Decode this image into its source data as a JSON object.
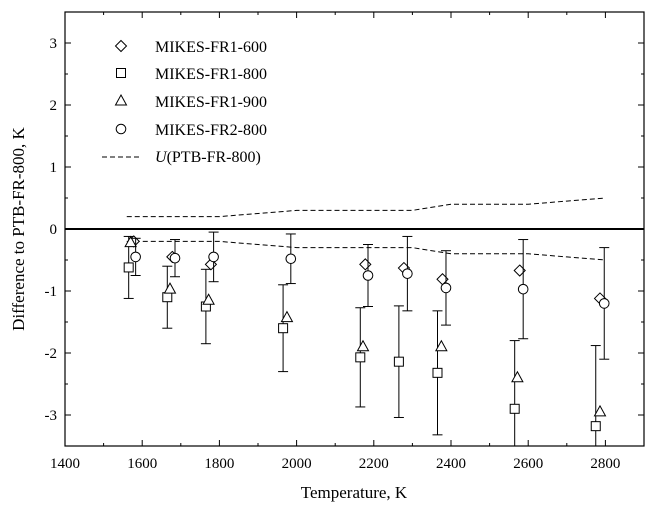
{
  "chart_data": {
    "type": "scatter",
    "title": "",
    "xlabel": "Temperature, K",
    "ylabel": "Difference to PTB-FR-800, K",
    "xlim": [
      1400,
      2900
    ],
    "ylim": [
      -3.5,
      3.5
    ],
    "xticks": [
      1400,
      1600,
      1800,
      2000,
      2200,
      2400,
      2600,
      2800
    ],
    "yticks": [
      -3,
      -2,
      -1,
      0,
      1,
      2,
      3
    ],
    "grid": false,
    "legend_position": "top-left",
    "series": [
      {
        "name": "MIKES-FR1-600",
        "marker": "diamond",
        "points": [
          {
            "x": 1578,
            "y": -0.2,
            "err": 0.0
          },
          {
            "x": 1678,
            "y": -0.45,
            "err": 0.0
          },
          {
            "x": 1778,
            "y": -0.57,
            "err": 0.0
          },
          {
            "x": 2178,
            "y": -0.57,
            "err": 0.0
          },
          {
            "x": 2278,
            "y": -0.63,
            "err": 0.0
          },
          {
            "x": 2378,
            "y": -0.81,
            "err": 0.0
          },
          {
            "x": 2578,
            "y": -0.67,
            "err": 0.0
          },
          {
            "x": 2786,
            "y": -1.12,
            "err": 0.0
          }
        ]
      },
      {
        "name": "MIKES-FR1-800",
        "marker": "square",
        "points": [
          {
            "x": 1565,
            "y": -0.62,
            "err": 0.5
          },
          {
            "x": 1665,
            "y": -1.1,
            "err": 0.5
          },
          {
            "x": 1765,
            "y": -1.25,
            "err": 0.6
          },
          {
            "x": 1965,
            "y": -1.6,
            "err": 0.7
          },
          {
            "x": 2165,
            "y": -2.07,
            "err": 0.8
          },
          {
            "x": 2265,
            "y": -2.14,
            "err": 0.9
          },
          {
            "x": 2365,
            "y": -2.32,
            "err": 1.0
          },
          {
            "x": 2565,
            "y": -2.9,
            "err": 1.1
          },
          {
            "x": 2775,
            "y": -3.18,
            "err": 1.3
          }
        ]
      },
      {
        "name": "MIKES-FR1-900",
        "marker": "triangle",
        "points": [
          {
            "x": 1570,
            "y": -0.22,
            "err": 0.0
          },
          {
            "x": 1672,
            "y": -0.97,
            "err": 0.0
          },
          {
            "x": 1772,
            "y": -1.15,
            "err": 0.0
          },
          {
            "x": 1975,
            "y": -1.43,
            "err": 0.0
          },
          {
            "x": 2172,
            "y": -1.9,
            "err": 0.0
          },
          {
            "x": 2375,
            "y": -1.9,
            "err": 0.0
          },
          {
            "x": 2572,
            "y": -2.4,
            "err": 0.0
          },
          {
            "x": 2786,
            "y": -2.95,
            "err": 0.0
          }
        ]
      },
      {
        "name": "MIKES-FR2-800",
        "marker": "circle",
        "points": [
          {
            "x": 1583,
            "y": -0.45,
            "err": 0.3
          },
          {
            "x": 1685,
            "y": -0.47,
            "err": 0.3
          },
          {
            "x": 1785,
            "y": -0.45,
            "err": 0.4
          },
          {
            "x": 1985,
            "y": -0.48,
            "err": 0.4
          },
          {
            "x": 2185,
            "y": -0.75,
            "err": 0.5
          },
          {
            "x": 2287,
            "y": -0.72,
            "err": 0.6
          },
          {
            "x": 2387,
            "y": -0.95,
            "err": 0.6
          },
          {
            "x": 2587,
            "y": -0.97,
            "err": 0.8
          },
          {
            "x": 2797,
            "y": -1.2,
            "err": 0.9
          }
        ]
      }
    ],
    "uncertainty_band": {
      "name_prefix": "U",
      "name_suffix": "(PTB-FR-800)",
      "x": [
        1560,
        1700,
        1800,
        2000,
        2100,
        2300,
        2400,
        2600,
        2700,
        2800
      ],
      "upper": [
        0.2,
        0.2,
        0.2,
        0.3,
        0.3,
        0.3,
        0.4,
        0.4,
        0.45,
        0.5
      ],
      "lower": [
        -0.2,
        -0.2,
        -0.2,
        -0.3,
        -0.3,
        -0.3,
        -0.4,
        -0.4,
        -0.45,
        -0.5
      ]
    },
    "zero_line": true
  }
}
